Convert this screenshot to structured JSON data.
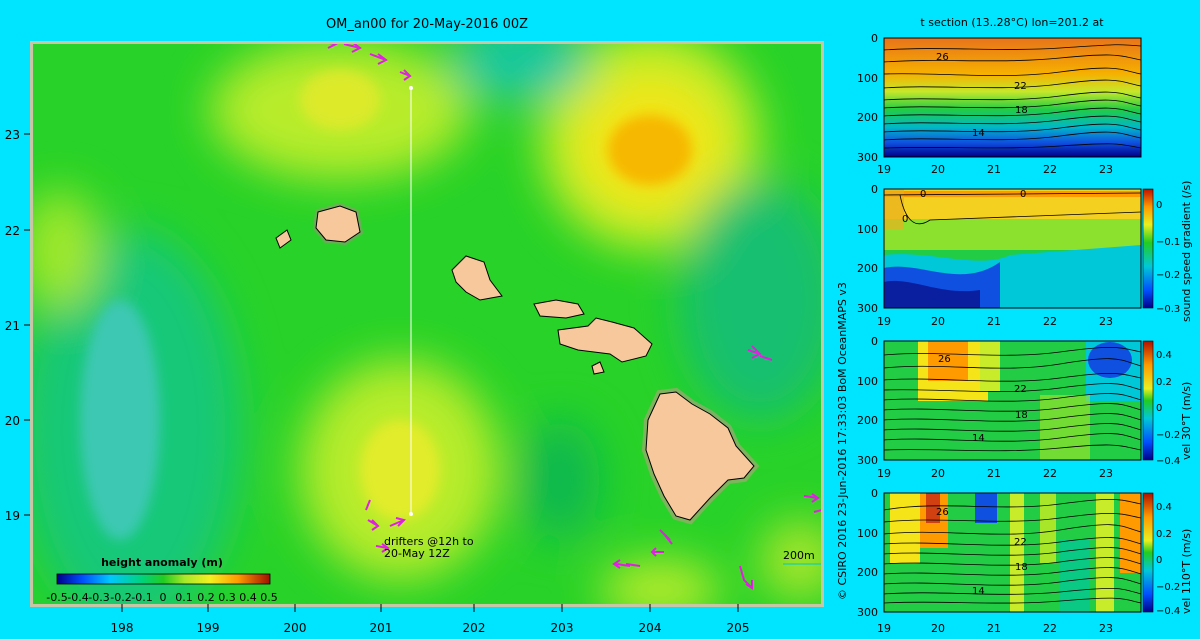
{
  "title": "OM_an00 for 20-May-2016 00Z",
  "map": {
    "lon_ticks": [
      "198",
      "199",
      "200",
      "201",
      "202",
      "203",
      "204",
      "205"
    ],
    "lat_ticks": [
      "23",
      "22",
      "21",
      "20",
      "19"
    ],
    "drifters_label_1": "drifters @12h to",
    "drifters_label_2": "20-May 12Z",
    "depth_label": "200m",
    "colorbar_title": "height anomaly (m)",
    "colorbar_ticks": [
      "-0.5",
      "-0.4",
      "-0.3",
      "-0.2",
      "-0.1",
      "0",
      "0.1",
      "0.2",
      "0.3",
      "0.4",
      "0.5"
    ]
  },
  "credit": "© CSIRO 2016  23-Jun-2016 17:33:03 BoM OceanMAPS v3",
  "section_title": "t section (13..28°C) lon=201.2 at",
  "panels": {
    "x_ticks": [
      "19",
      "20",
      "21",
      "22",
      "23"
    ],
    "y_ticks": [
      "0",
      "100",
      "200",
      "300"
    ],
    "contour_labels_t": [
      "26",
      "22",
      "18",
      "14"
    ],
    "sound_label": "sound speed gradient (/s)",
    "sound_ticks": [
      "0",
      "−0.1",
      "−0.2",
      "−0.3"
    ],
    "sound_contour": "0",
    "vel30_label": "vel 30°T (m/s)",
    "vel110_label": "vel 110°T (m/s)",
    "vel_ticks": [
      "0.4",
      "0.2",
      "0",
      "−0.2",
      "−0.4"
    ]
  }
}
